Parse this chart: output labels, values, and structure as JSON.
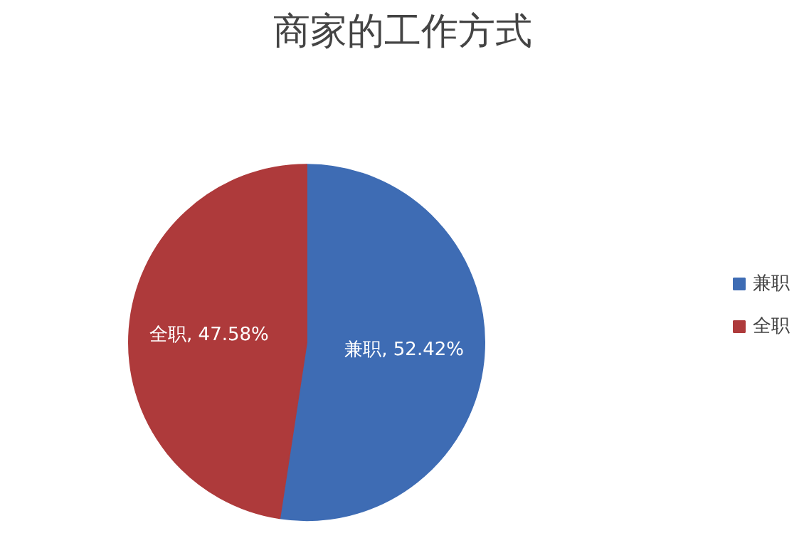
{
  "chart_data": {
    "type": "pie",
    "title": "商家的工作方式",
    "categories": [
      "兼职",
      "全职"
    ],
    "values": [
      52.42,
      47.58
    ],
    "colors": [
      "#3e6cb4",
      "#ae3a3b"
    ],
    "value_labels": [
      "兼职, 52.42%",
      "全职, 47.58%"
    ],
    "legend": "right"
  }
}
